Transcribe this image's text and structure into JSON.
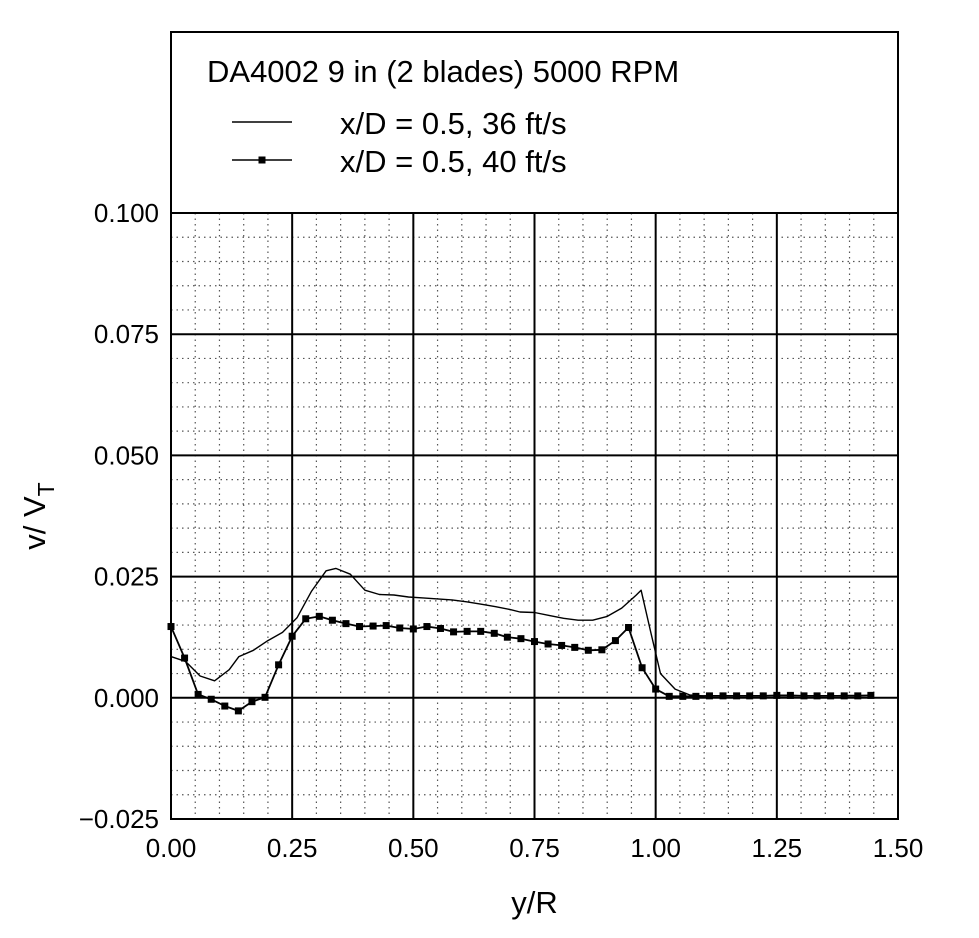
{
  "chart_data": {
    "type": "line",
    "title": "DA4002 9 in (2 blades) 5000 RPM",
    "xlabel": "y/R",
    "ylabel_main": "v/ V",
    "ylabel_sub": "T",
    "xlim": [
      0.0,
      1.5
    ],
    "ylim": [
      -0.025,
      0.1
    ],
    "xticks": [
      0.0,
      0.25,
      0.5,
      0.75,
      1.0,
      1.25,
      1.5
    ],
    "xtick_labels": [
      "0.00",
      "0.25",
      "0.50",
      "0.75",
      "1.00",
      "1.25",
      "1.50"
    ],
    "yticks": [
      -0.025,
      0.0,
      0.025,
      0.05,
      0.075,
      0.1
    ],
    "ytick_labels": [
      "−0.025",
      "0.000",
      "0.025",
      "0.050",
      "0.075",
      "0.100"
    ],
    "grid": true,
    "legend_position": "top, above plot area",
    "series": [
      {
        "name": "x/D = 0.5, 36 ft/s",
        "marker": "none",
        "x": [
          0.0,
          0.03,
          0.06,
          0.09,
          0.12,
          0.14,
          0.17,
          0.2,
          0.23,
          0.26,
          0.29,
          0.32,
          0.34,
          0.37,
          0.4,
          0.43,
          0.46,
          0.49,
          0.52,
          0.55,
          0.58,
          0.61,
          0.64,
          0.67,
          0.7,
          0.72,
          0.75,
          0.78,
          0.81,
          0.84,
          0.87,
          0.9,
          0.93,
          0.96,
          0.97,
          0.99,
          1.01,
          1.04,
          1.07,
          1.1,
          1.15,
          1.2,
          1.25,
          1.3,
          1.35,
          1.4,
          1.44
        ],
        "y": [
          0.0085,
          0.0075,
          0.0045,
          0.0035,
          0.0058,
          0.0085,
          0.0098,
          0.0118,
          0.0135,
          0.0165,
          0.022,
          0.0262,
          0.0267,
          0.0255,
          0.0222,
          0.0213,
          0.0212,
          0.0208,
          0.0206,
          0.0204,
          0.0202,
          0.0198,
          0.0193,
          0.0188,
          0.0182,
          0.0177,
          0.0176,
          0.017,
          0.0164,
          0.016,
          0.016,
          0.0168,
          0.0185,
          0.0212,
          0.0222,
          0.0135,
          0.005,
          0.0018,
          0.0006,
          0.0004,
          0.0004,
          0.0004,
          0.0004,
          0.0004,
          0.0004,
          0.0005,
          0.0005
        ]
      },
      {
        "name": "x/D = 0.5, 40 ft/s",
        "marker": "square",
        "x": [
          0.0,
          0.028,
          0.056,
          0.083,
          0.111,
          0.139,
          0.167,
          0.194,
          0.222,
          0.25,
          0.278,
          0.306,
          0.333,
          0.361,
          0.389,
          0.417,
          0.444,
          0.472,
          0.5,
          0.528,
          0.556,
          0.583,
          0.611,
          0.639,
          0.667,
          0.694,
          0.722,
          0.75,
          0.778,
          0.806,
          0.833,
          0.861,
          0.889,
          0.917,
          0.944,
          0.972,
          1.0,
          1.028,
          1.056,
          1.083,
          1.111,
          1.139,
          1.167,
          1.194,
          1.222,
          1.25,
          1.278,
          1.306,
          1.333,
          1.361,
          1.389,
          1.417,
          1.444
        ],
        "y": [
          0.0147,
          0.0082,
          0.0007,
          -0.0003,
          -0.0017,
          -0.0027,
          -0.0008,
          0.0001,
          0.0068,
          0.0127,
          0.0163,
          0.0168,
          0.016,
          0.0153,
          0.0147,
          0.0148,
          0.0149,
          0.0144,
          0.0142,
          0.0147,
          0.0143,
          0.0136,
          0.0137,
          0.0137,
          0.0133,
          0.0125,
          0.0122,
          0.0116,
          0.0111,
          0.0108,
          0.0104,
          0.0098,
          0.0099,
          0.0118,
          0.0145,
          0.0062,
          0.0018,
          0.0003,
          0.0003,
          0.0003,
          0.0004,
          0.0004,
          0.0004,
          0.0004,
          0.0004,
          0.0005,
          0.0005,
          0.0004,
          0.0004,
          0.0004,
          0.0004,
          0.0004,
          0.0005
        ]
      }
    ]
  }
}
